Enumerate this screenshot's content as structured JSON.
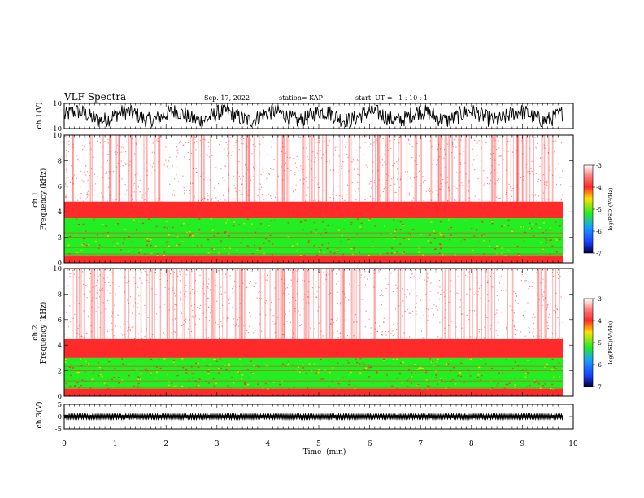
{
  "header": {
    "title": "VLF Spectra",
    "date": "Sep. 17, 2022",
    "station": "station= KAP",
    "start": "start  UT =   1 : 10 : 1"
  },
  "colors": {
    "spec_white": "#ffffff",
    "spec_red": "#ff2a2a",
    "spec_yellow": "#ffe100",
    "spec_green": "#22ee22",
    "spec_blue": "#1a3cff",
    "spec_dark": "#00003c",
    "trace": "#000000"
  },
  "chart_data": [
    {
      "type": "line",
      "panel": "waveform-ch1",
      "ylabel": "ch.1(V)",
      "ylim": [
        -10,
        10
      ],
      "yticks": [
        "10",
        "-10"
      ],
      "x_extent_min": 9.8,
      "description_values": {
        "min_v": -9,
        "max_v": 9
      }
    },
    {
      "type": "heatmap",
      "panel": "spectrogram-ch1",
      "ylabel": "ch.1\nFrequency  (kHz)",
      "ylim": [
        0,
        10
      ],
      "yticks": [
        "0",
        "2",
        "4",
        "6",
        "8",
        "10"
      ],
      "bands": [
        {
          "from_khz": 0.0,
          "to_khz": 0.6,
          "level": -4.0
        },
        {
          "from_khz": 0.6,
          "to_khz": 3.5,
          "level": -4.9
        },
        {
          "from_khz": 3.5,
          "to_khz": 4.8,
          "level": -4.0
        },
        {
          "from_khz": 4.8,
          "to_khz": 10.0,
          "level": -3.5
        }
      ],
      "colorbar": {
        "label": "log(PSD)(V²/Hz)",
        "ticks": [
          "-3",
          "-4",
          "-5",
          "-6",
          "-7"
        ],
        "range": [
          -7,
          -3
        ]
      }
    },
    {
      "type": "heatmap",
      "panel": "spectrogram-ch2",
      "ylabel": "ch.2\nFrequency  (kHz)",
      "ylim": [
        0,
        10
      ],
      "yticks": [
        "0",
        "2",
        "4",
        "6",
        "8",
        "10"
      ],
      "bands": [
        {
          "from_khz": 0.0,
          "to_khz": 0.6,
          "level": -4.0
        },
        {
          "from_khz": 0.6,
          "to_khz": 3.0,
          "level": -4.9
        },
        {
          "from_khz": 3.0,
          "to_khz": 4.5,
          "level": -4.0
        },
        {
          "from_khz": 4.5,
          "to_khz": 10.0,
          "level": -3.4
        }
      ],
      "colorbar": {
        "label": "log(PSD)(V²/Hz)",
        "ticks": [
          "-3",
          "-4",
          "-5",
          "-6",
          "-7"
        ],
        "range": [
          -7,
          -3
        ]
      }
    },
    {
      "type": "line",
      "panel": "waveform-ch3",
      "ylabel": "ch.3(V)",
      "ylim": [
        -5,
        5
      ],
      "yticks": [
        "5",
        "0",
        "-5"
      ],
      "x_extent_min": 9.8,
      "description_values": {
        "min_v": -0.6,
        "max_v": 0.6
      }
    }
  ],
  "xaxis": {
    "label": "Time  (min)",
    "range": [
      0,
      10
    ],
    "ticks": [
      "0",
      "1",
      "2",
      "3",
      "4",
      "5",
      "6",
      "7",
      "8",
      "9",
      "10"
    ]
  }
}
